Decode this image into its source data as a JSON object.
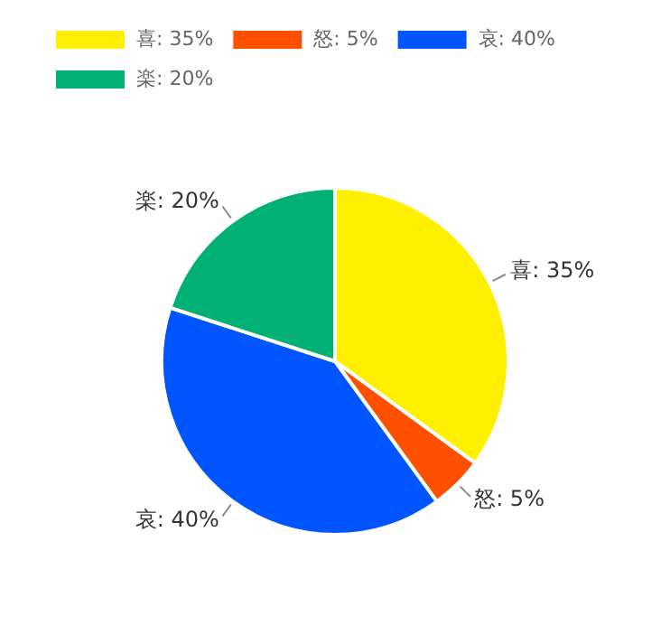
{
  "chart_data": {
    "type": "pie",
    "categories": [
      "喜: 35%",
      "怒: 5%",
      "哀: 40%",
      "楽: 20%"
    ],
    "values": [
      35,
      5,
      40,
      20
    ],
    "colors": [
      "#fff000",
      "#ff5000",
      "#0055ff",
      "#00b074"
    ],
    "legend": "top left"
  }
}
